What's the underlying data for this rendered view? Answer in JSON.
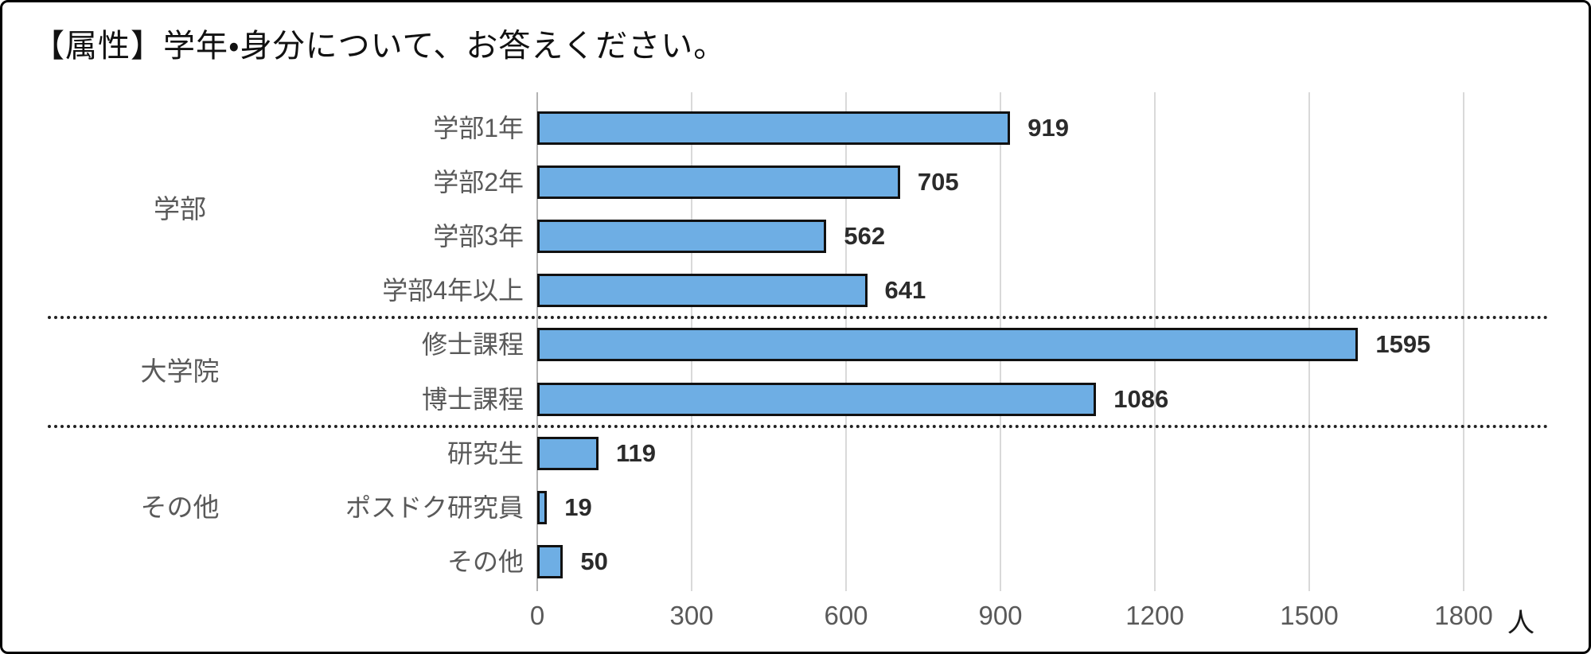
{
  "page": {
    "title": "【属性】学年・身分について、お答えください。"
  },
  "chart_data": {
    "type": "bar",
    "orientation": "horizontal",
    "title": "【属性】学年・身分について、お答えください。",
    "unit_label": "人",
    "x_axis": {
      "min": 0,
      "max": 1800,
      "ticks": [
        0,
        300,
        600,
        900,
        1200,
        1500,
        1800
      ]
    },
    "grid": "vertical",
    "legend": "none",
    "groups": [
      {
        "label": "学部",
        "items": [
          {
            "label": "学部1年",
            "value": 919
          },
          {
            "label": "学部2年",
            "value": 705
          },
          {
            "label": "学部3年",
            "value": 562
          },
          {
            "label": "学部4年以上",
            "value": 641
          }
        ]
      },
      {
        "label": "大学院",
        "items": [
          {
            "label": "修士課程",
            "value": 1595
          },
          {
            "label": "博士課程",
            "value": 1086
          }
        ]
      },
      {
        "label": "その他",
        "items": [
          {
            "label": "研究生",
            "value": 119
          },
          {
            "label": "ポスドク研究員",
            "value": 19
          },
          {
            "label": "その他",
            "value": 50
          }
        ]
      }
    ],
    "colors": {
      "bar_fill": "#6EAEE4",
      "bar_border": "#111111",
      "grid_line": "#d9d9d9",
      "axis_line": "#b3b3b3",
      "category_text": "#595959",
      "value_text": "#2b2b2b",
      "separator": "#222222"
    }
  }
}
